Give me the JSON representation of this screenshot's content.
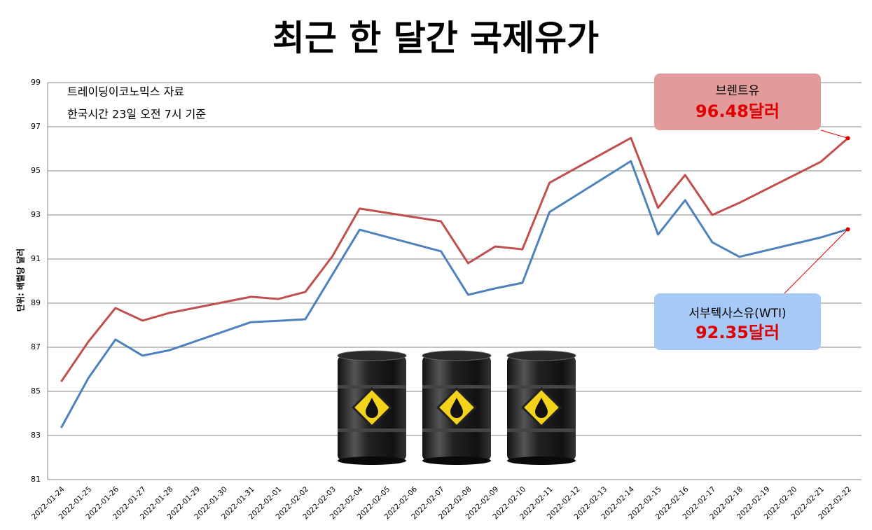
{
  "chart_data": {
    "type": "line",
    "title": "최근 한 달간 국제유가",
    "y_label": "단위: 배럴당 달러",
    "annotations": [
      "트레이딩이코노믹스 자료",
      "한국시간 23일 오전 7시 기준"
    ],
    "categories": [
      "2022-01-24",
      "2022-01-25",
      "2022-01-26",
      "2022-01-27",
      "2022-01-28",
      "2022-01-29",
      "2022-01-30",
      "2022-01-31",
      "2022-02-01",
      "2022-02-02",
      "2022-02-03",
      "2022-02-04",
      "2022-02-05",
      "2022-02-06",
      "2022-02-07",
      "2022-02-08",
      "2022-02-09",
      "2022-02-10",
      "2022-02-11",
      "2022-02-12",
      "2022-02-13",
      "2022-02-14",
      "2022-02-15",
      "2022-02-16",
      "2022-02-17",
      "2022-02-18",
      "2022-02-19",
      "2022-02-20",
      "2022-02-21",
      "2022-02-22"
    ],
    "ylim": [
      81,
      99
    ],
    "yticks": [
      81,
      83,
      85,
      87,
      89,
      91,
      93,
      95,
      97,
      99
    ],
    "grid": true,
    "series": [
      {
        "name": "브렌트유",
        "color": "#c0504d",
        "x": [
          "2022-01-24",
          "2022-01-25",
          "2022-01-26",
          "2022-01-27",
          "2022-01-28",
          "2022-01-31",
          "2022-02-01",
          "2022-02-02",
          "2022-02-03",
          "2022-02-04",
          "2022-02-07",
          "2022-02-08",
          "2022-02-09",
          "2022-02-10",
          "2022-02-11",
          "2022-02-14",
          "2022-02-15",
          "2022-02-16",
          "2022-02-17",
          "2022-02-18",
          "2022-02-21",
          "2022-02-22"
        ],
        "values": [
          85.44,
          87.25,
          88.78,
          88.21,
          88.56,
          89.29,
          89.19,
          89.51,
          91.13,
          93.29,
          92.71,
          90.81,
          91.57,
          91.44,
          94.46,
          96.49,
          93.32,
          94.81,
          93.0,
          93.55,
          95.41,
          96.48
        ],
        "value_labels": [
          null,
          null,
          null,
          null,
          null,
          null,
          null,
          null,
          null,
          null,
          null,
          null,
          null,
          null,
          null,
          null,
          null,
          null,
          null,
          null,
          null,
          "96.48달러"
        ]
      },
      {
        "name": "서부텍사스유(WTI)",
        "color": "#4f81bd",
        "x": [
          "2022-01-24",
          "2022-01-25",
          "2022-01-26",
          "2022-01-27",
          "2022-01-28",
          "2022-01-31",
          "2022-02-01",
          "2022-02-02",
          "2022-02-03",
          "2022-02-04",
          "2022-02-07",
          "2022-02-08",
          "2022-02-09",
          "2022-02-10",
          "2022-02-11",
          "2022-02-14",
          "2022-02-15",
          "2022-02-16",
          "2022-02-17",
          "2022-02-18",
          "2022-02-21",
          "2022-02-22"
        ],
        "values": [
          83.35,
          85.6,
          87.35,
          86.62,
          86.87,
          88.14,
          88.2,
          88.27,
          90.3,
          92.33,
          91.35,
          89.38,
          89.67,
          89.92,
          93.13,
          95.44,
          92.11,
          93.67,
          91.76,
          91.1,
          91.98,
          92.35
        ],
        "value_labels": [
          null,
          null,
          null,
          null,
          null,
          null,
          null,
          null,
          null,
          null,
          null,
          null,
          null,
          null,
          null,
          null,
          null,
          null,
          null,
          null,
          null,
          "92.35달러"
        ]
      }
    ]
  }
}
